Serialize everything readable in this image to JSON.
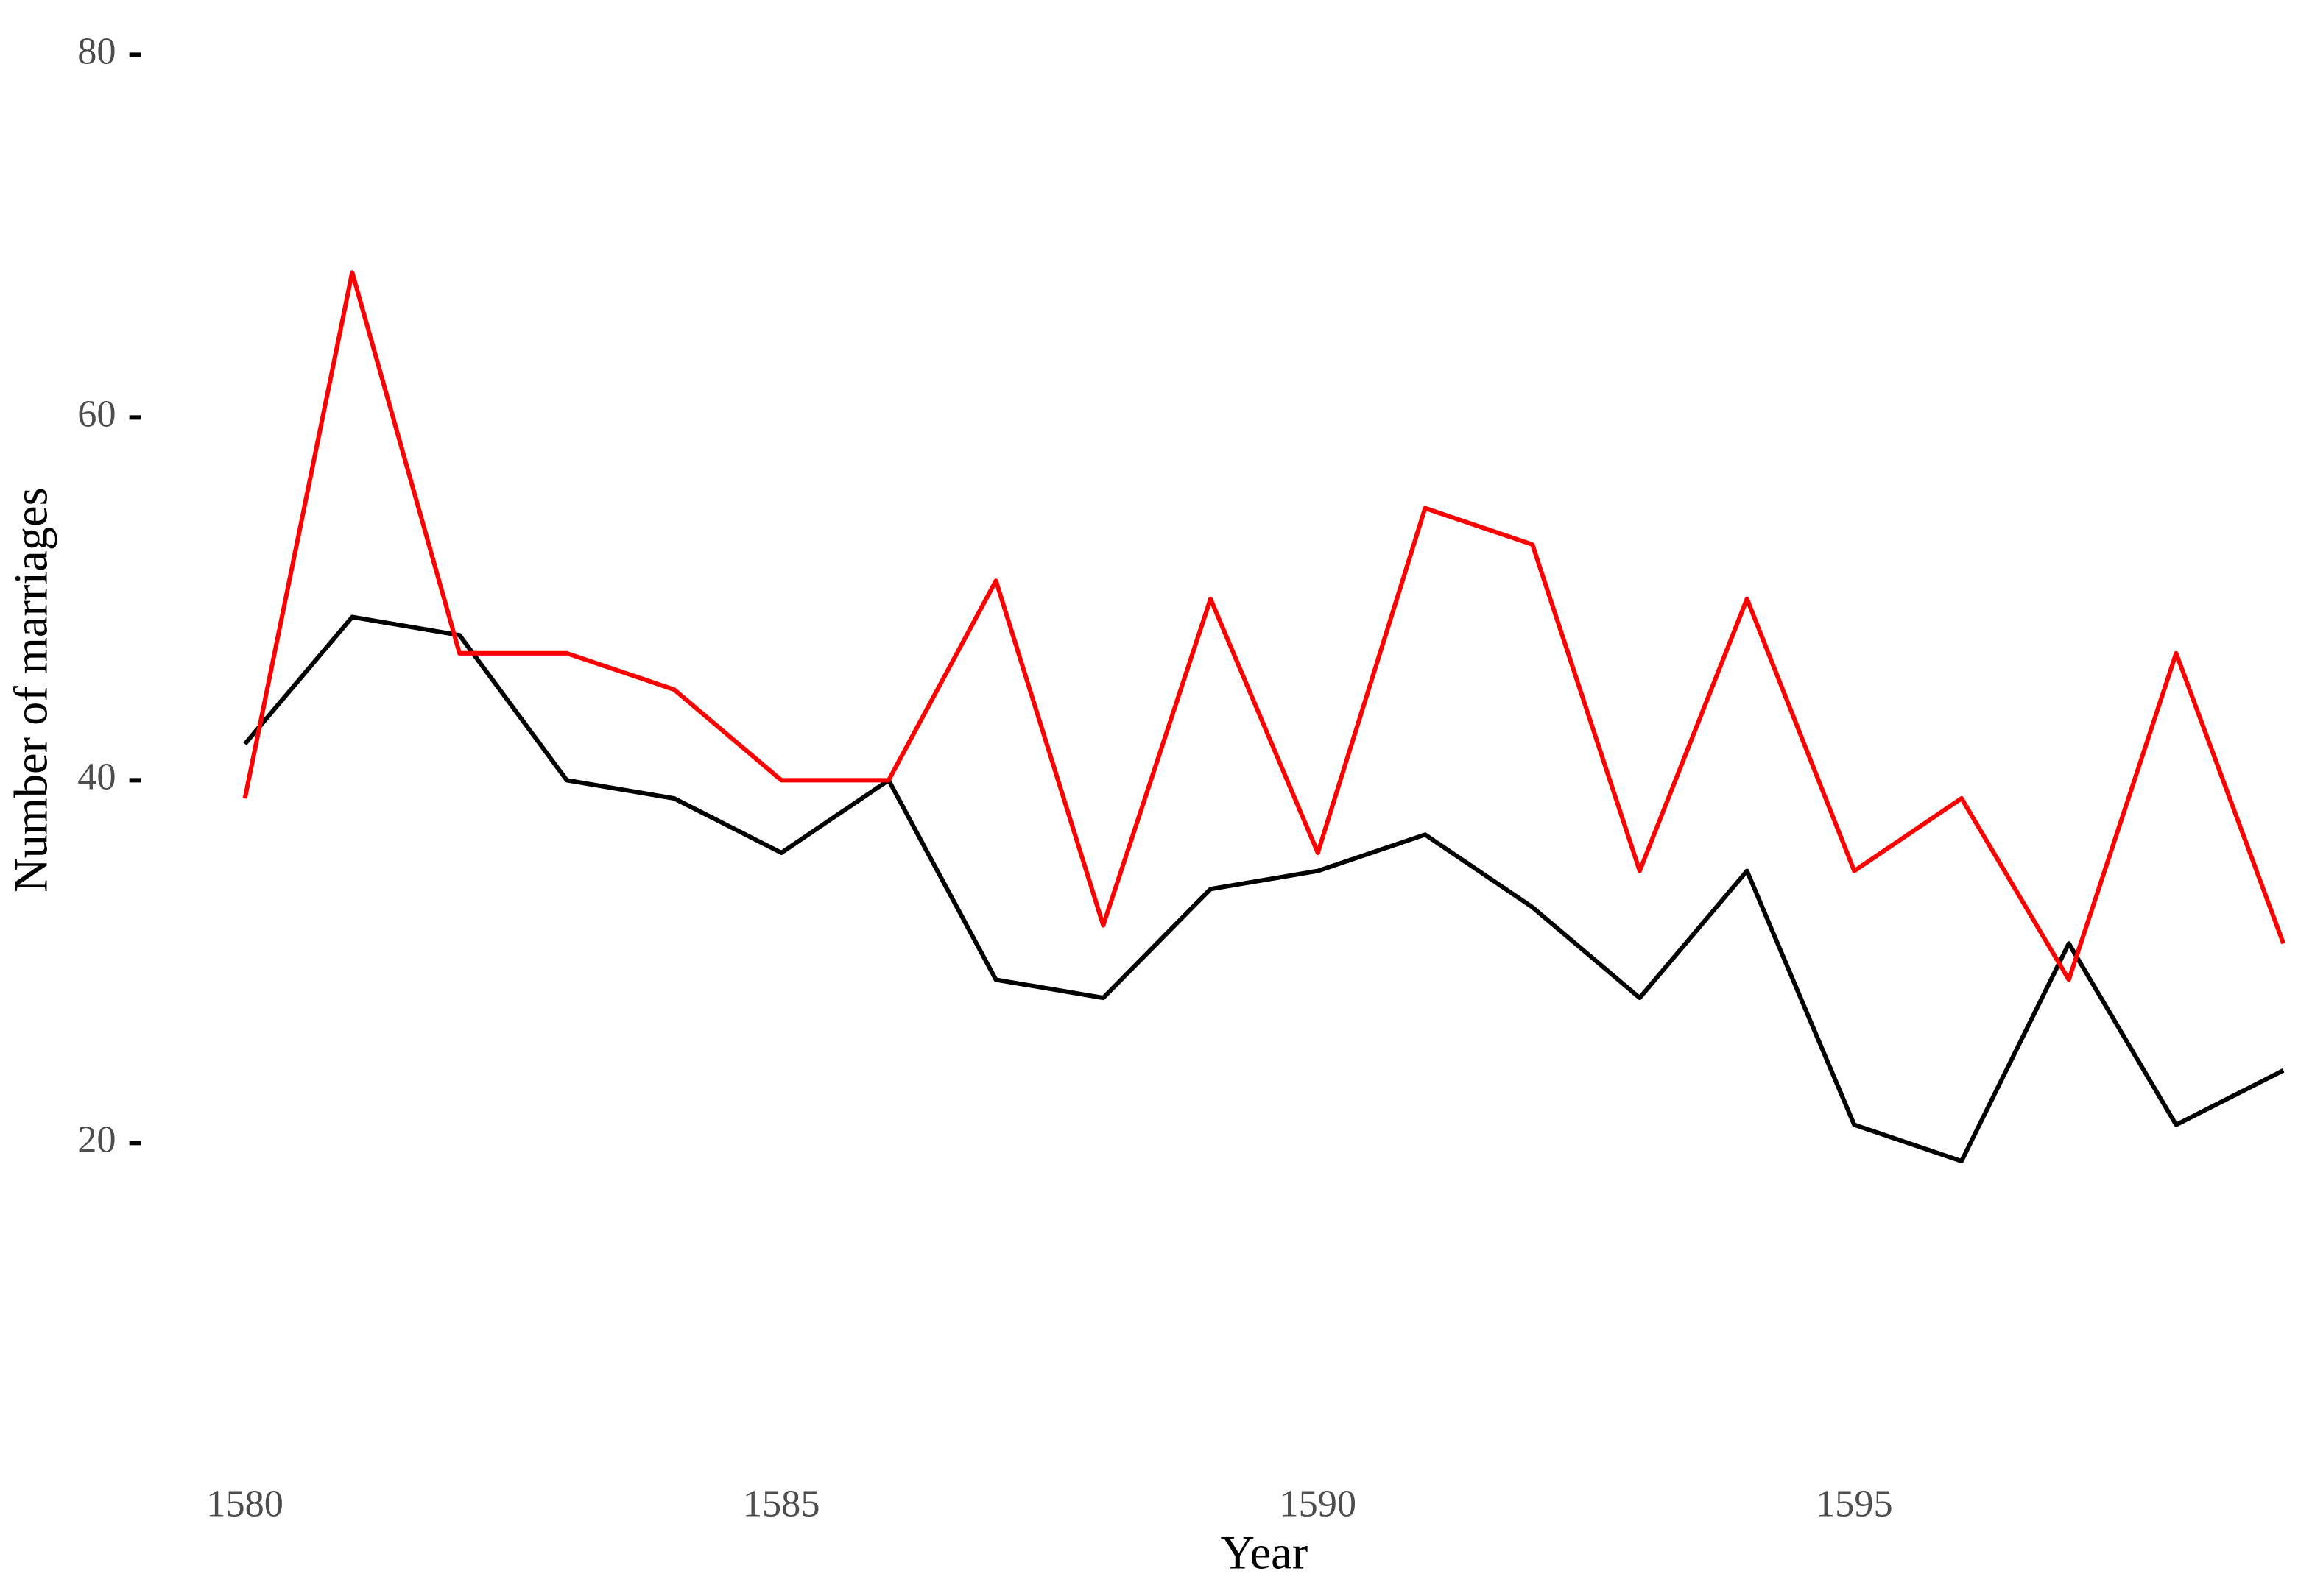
{
  "chart_data": {
    "type": "line",
    "x_label": "Year",
    "y_label": "Number of marriages",
    "x": [
      1580,
      1581,
      1582,
      1583,
      1584,
      1585,
      1586,
      1587,
      1588,
      1589,
      1590,
      1591,
      1592,
      1593,
      1594,
      1595,
      1596,
      1597,
      1598,
      1599
    ],
    "series": [
      {
        "color": "#000000",
        "values": [
          42,
          49,
          48,
          40,
          39,
          36,
          40,
          29,
          28,
          34,
          35,
          37,
          33,
          28,
          35,
          21,
          19,
          31,
          21,
          24
        ]
      },
      {
        "color": "#ff0000",
        "values": [
          39,
          68,
          47,
          47,
          45,
          40,
          40,
          51,
          32,
          50,
          36,
          55,
          53,
          35,
          50,
          35,
          39,
          29,
          47,
          31
        ]
      }
    ],
    "xlim": [
      1579,
      1599
    ],
    "xticks": [
      1580,
      1585,
      1590,
      1595
    ],
    "ylim": [
      2,
      80
    ],
    "yticks": [
      20,
      40,
      60,
      80
    ],
    "grid": false
  }
}
